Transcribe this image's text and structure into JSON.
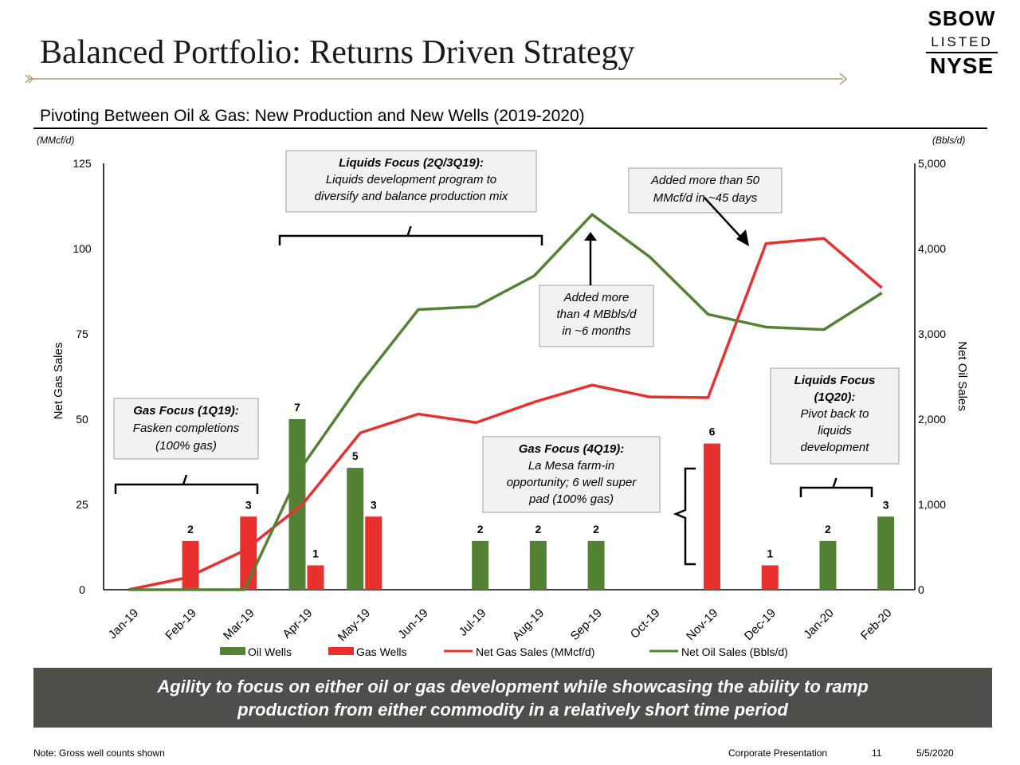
{
  "header": {
    "title": "Balanced Portfolio: Returns Driven Strategy",
    "logo": {
      "line1": "SBOW",
      "line2": "LISTED",
      "line3": "NYSE"
    }
  },
  "subtitle": "Pivoting Between Oil & Gas: New Production and New Wells (2019-2020)",
  "units": {
    "left": "(MMcf/d)",
    "right": "(Bbls/d)"
  },
  "chart_data": {
    "type": "bar",
    "categories": [
      "Jan-19",
      "Feb-19",
      "Mar-19",
      "Apr-19",
      "May-19",
      "Jun-19",
      "Jul-19",
      "Aug-19",
      "Sep-19",
      "Oct-19",
      "Nov-19",
      "Dec-19",
      "Jan-20",
      "Feb-20"
    ],
    "ylabel": "Net Gas Sales",
    "y2label": "Net Oil Sales",
    "ylim": [
      0,
      125
    ],
    "y2lim": [
      0,
      5000
    ],
    "yticks": [
      "0",
      "25",
      "50",
      "75",
      "100",
      "125"
    ],
    "y2ticks": [
      "0",
      "1,000",
      "2,000",
      "3,000",
      "4,000",
      "5,000"
    ],
    "well_scale_max": 17.5,
    "series": [
      {
        "name": "Oil Wells",
        "type": "bar",
        "color": "#548235",
        "values": [
          0,
          0,
          0,
          7,
          5,
          0,
          2,
          2,
          2,
          0,
          0,
          0,
          2,
          3
        ]
      },
      {
        "name": "Gas Wells",
        "type": "bar",
        "color": "#e8302f",
        "values": [
          0,
          2,
          3,
          1,
          3,
          0,
          0,
          0,
          0,
          0,
          6,
          1,
          0,
          0
        ]
      },
      {
        "name": "Net Gas Sales (MMcf/d)",
        "type": "line",
        "axis": "left",
        "color": "#e8302f",
        "values": [
          0,
          3.5,
          11.5,
          25,
          46,
          51.5,
          49,
          55,
          60,
          56.5,
          56.3,
          101.5,
          103,
          88.5
        ]
      },
      {
        "name": "Net Oil Sales (Bbls/d)",
        "type": "line",
        "axis": "right",
        "color": "#548235",
        "values": [
          0,
          0,
          0,
          1450,
          2420,
          3285,
          3320,
          3680,
          4400,
          3900,
          3230,
          3080,
          3050,
          3480
        ]
      }
    ],
    "annotations": [
      {
        "id": "gas-focus-1q19",
        "lines": [
          "Gas Focus (1Q19):",
          "Fasken completions",
          "(100% gas)"
        ]
      },
      {
        "id": "liquids-focus-2q3q19",
        "lines": [
          "Liquids Focus (2Q/3Q19):",
          "Liquids development program to",
          "diversify and balance production mix"
        ]
      },
      {
        "id": "added-4mbbls",
        "lines": [
          "Added more",
          "than 4 MBbls/d",
          "in ~6 months"
        ]
      },
      {
        "id": "added-50mmcf",
        "lines": [
          "Added more than 50",
          "MMcf/d in ~45 days"
        ]
      },
      {
        "id": "gas-focus-4q19",
        "lines": [
          "Gas Focus (4Q19):",
          "La Mesa farm-in",
          "opportunity; 6 well super",
          "pad (100% gas)"
        ]
      },
      {
        "id": "liquids-focus-1q20",
        "lines": [
          "Liquids Focus",
          "(1Q20):",
          "Pivot back to",
          "liquids",
          "development"
        ]
      }
    ]
  },
  "banner": {
    "line1": "Agility to focus on either oil or gas development while showcasing the ability to ramp",
    "line2": "production from either commodity in a relatively short time period"
  },
  "footer": {
    "note": "Note: Gross well counts shown",
    "doc": "Corporate Presentation",
    "page": "11",
    "date": "5/5/2020"
  }
}
